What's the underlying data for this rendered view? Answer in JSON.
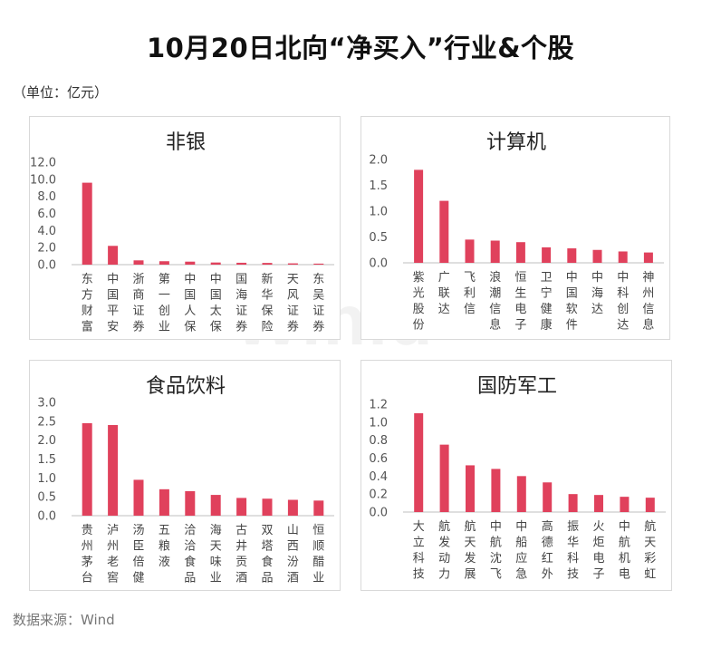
{
  "page": {
    "title": "10月20日北向“净买入”行业&个股",
    "unit": "（单位：亿元）",
    "source": "数据来源：Wind",
    "watermark": "Win.d"
  },
  "colors": {
    "bar": "#e0415c",
    "axis": "#bfbfbf",
    "border": "#d9d9d9"
  },
  "chart_data": [
    {
      "type": "bar",
      "title": "非银",
      "categories": [
        "东方财富",
        "中国平安",
        "浙商证券",
        "第一创业",
        "中国人保",
        "中国太保",
        "国海证券",
        "新华保险",
        "天风证券",
        "东吴证券"
      ],
      "values": [
        9.6,
        2.2,
        0.5,
        0.4,
        0.35,
        0.25,
        0.22,
        0.2,
        0.15,
        0.12
      ],
      "ylim": [
        0,
        12
      ],
      "yticks": [
        "0.0",
        "2.0",
        "4.0",
        "6.0",
        "8.0",
        "10.0",
        "12.0"
      ],
      "xlabel": "",
      "ylabel": ""
    },
    {
      "type": "bar",
      "title": "计算机",
      "categories": [
        "紫光股份",
        "广联达",
        "飞利信",
        "浪潮信息",
        "恒生电子",
        "卫宁健康",
        "中国软件",
        "中海达",
        "中科创达",
        "神州信息"
      ],
      "values": [
        1.8,
        1.2,
        0.45,
        0.43,
        0.4,
        0.3,
        0.28,
        0.25,
        0.22,
        0.2
      ],
      "ylim": [
        0,
        2
      ],
      "yticks": [
        "0.0",
        "0.5",
        "1.0",
        "1.5",
        "2.0"
      ],
      "xlabel": "",
      "ylabel": ""
    },
    {
      "type": "bar",
      "title": "食品饮料",
      "categories": [
        "贵州茅台",
        "泸州老窖",
        "汤臣倍健",
        "五粮液",
        "洽洽食品",
        "海天味业",
        "古井贡酒",
        "双塔食品",
        "山西汾酒",
        "恒顺醋业"
      ],
      "values": [
        2.45,
        2.4,
        0.95,
        0.7,
        0.65,
        0.55,
        0.47,
        0.45,
        0.42,
        0.4
      ],
      "ylim": [
        0,
        3
      ],
      "yticks": [
        "0.0",
        "0.5",
        "1.0",
        "1.5",
        "2.0",
        "2.5",
        "3.0"
      ],
      "xlabel": "",
      "ylabel": ""
    },
    {
      "type": "bar",
      "title": "国防军工",
      "categories": [
        "大立科技",
        "航发动力",
        "航天发展",
        "中航沈飞",
        "中船应急",
        "高德红外",
        "振华科技",
        "火炬电子",
        "中航机电",
        "航天彩虹"
      ],
      "values": [
        1.1,
        0.75,
        0.52,
        0.48,
        0.4,
        0.33,
        0.2,
        0.19,
        0.17,
        0.16
      ],
      "ylim": [
        0,
        1.2
      ],
      "yticks": [
        "0.0",
        "0.2",
        "0.4",
        "0.6",
        "0.8",
        "1.0",
        "1.2"
      ],
      "xlabel": "",
      "ylabel": ""
    }
  ]
}
